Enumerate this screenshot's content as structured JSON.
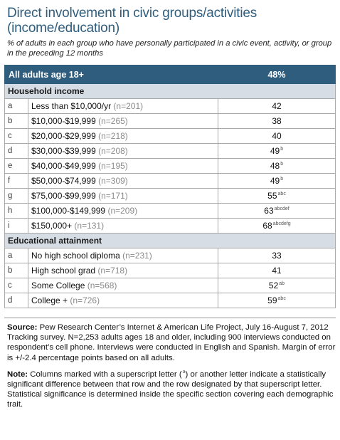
{
  "title": "Direct involvement in civic groups/activities (income/education)",
  "subtitle": "% of adults in each group who have personally participated in a civic event, activity, or group in the preceding 12 months",
  "all_adults": {
    "label": "All adults age 18+",
    "value": "48%"
  },
  "sections": [
    {
      "heading": "Household income",
      "rows": [
        {
          "letter": "a",
          "label": "Less than $10,000/yr",
          "n": "(n=201)",
          "value": "42",
          "sup": ""
        },
        {
          "letter": "b",
          "label": "$10,000-$19,999",
          "n": "(n=265)",
          "value": "38",
          "sup": ""
        },
        {
          "letter": "c",
          "label": "$20,000-$29,999",
          "n": "(n=218)",
          "value": "40",
          "sup": ""
        },
        {
          "letter": "d",
          "label": "$30,000-$39,999",
          "n": "(n=208)",
          "value": "49",
          "sup": "b"
        },
        {
          "letter": "e",
          "label": "$40,000-$49,999",
          "n": "(n=195)",
          "value": "48",
          "sup": "b"
        },
        {
          "letter": "f",
          "label": "$50,000-$74,999",
          "n": "(n=309)",
          "value": "49",
          "sup": "b"
        },
        {
          "letter": "g",
          "label": "$75,000-$99,999",
          "n": "(n=171)",
          "value": "55",
          "sup": "abc"
        },
        {
          "letter": "h",
          "label": "$100,000-$149,999",
          "n": "(n=209)",
          "value": "63",
          "sup": "abcdef"
        },
        {
          "letter": "i",
          "label": "$150,000+",
          "n": "(n=131)",
          "value": "68",
          "sup": "abcdefg"
        }
      ]
    },
    {
      "heading": "Educational attainment",
      "rows": [
        {
          "letter": "a",
          "label": "No high school diploma",
          "n": "(n=231)",
          "value": "33",
          "sup": ""
        },
        {
          "letter": "b",
          "label": "High school grad",
          "n": "(n=718)",
          "value": "41",
          "sup": ""
        },
        {
          "letter": "c",
          "label": "Some College",
          "n": "(n=568)",
          "value": "52",
          "sup": "ab"
        },
        {
          "letter": "d",
          "label": "College +",
          "n": "(n=726)",
          "value": "59",
          "sup": "abc"
        }
      ]
    }
  ],
  "source": {
    "label": "Source:",
    "text": "Pew Research Center’s Internet & American Life Project, July 16-August 7, 2012 Tracking survey. N=2,253 adults ages 18 and older, including 900 interviews conducted on respondent’s cell phone.  Interviews were conducted in English and Spanish. Margin of error is +/-2.4 percentage points based on all adults."
  },
  "note": {
    "label": "Note:",
    "text_before": "Columns marked with a superscript letter (",
    "sup_letter": "a",
    "text_after": ") or another letter indicate a statistically significant difference between that row and the row designated by that superscript letter. Statistical significance is determined inside the specific section covering each demographic trait."
  }
}
